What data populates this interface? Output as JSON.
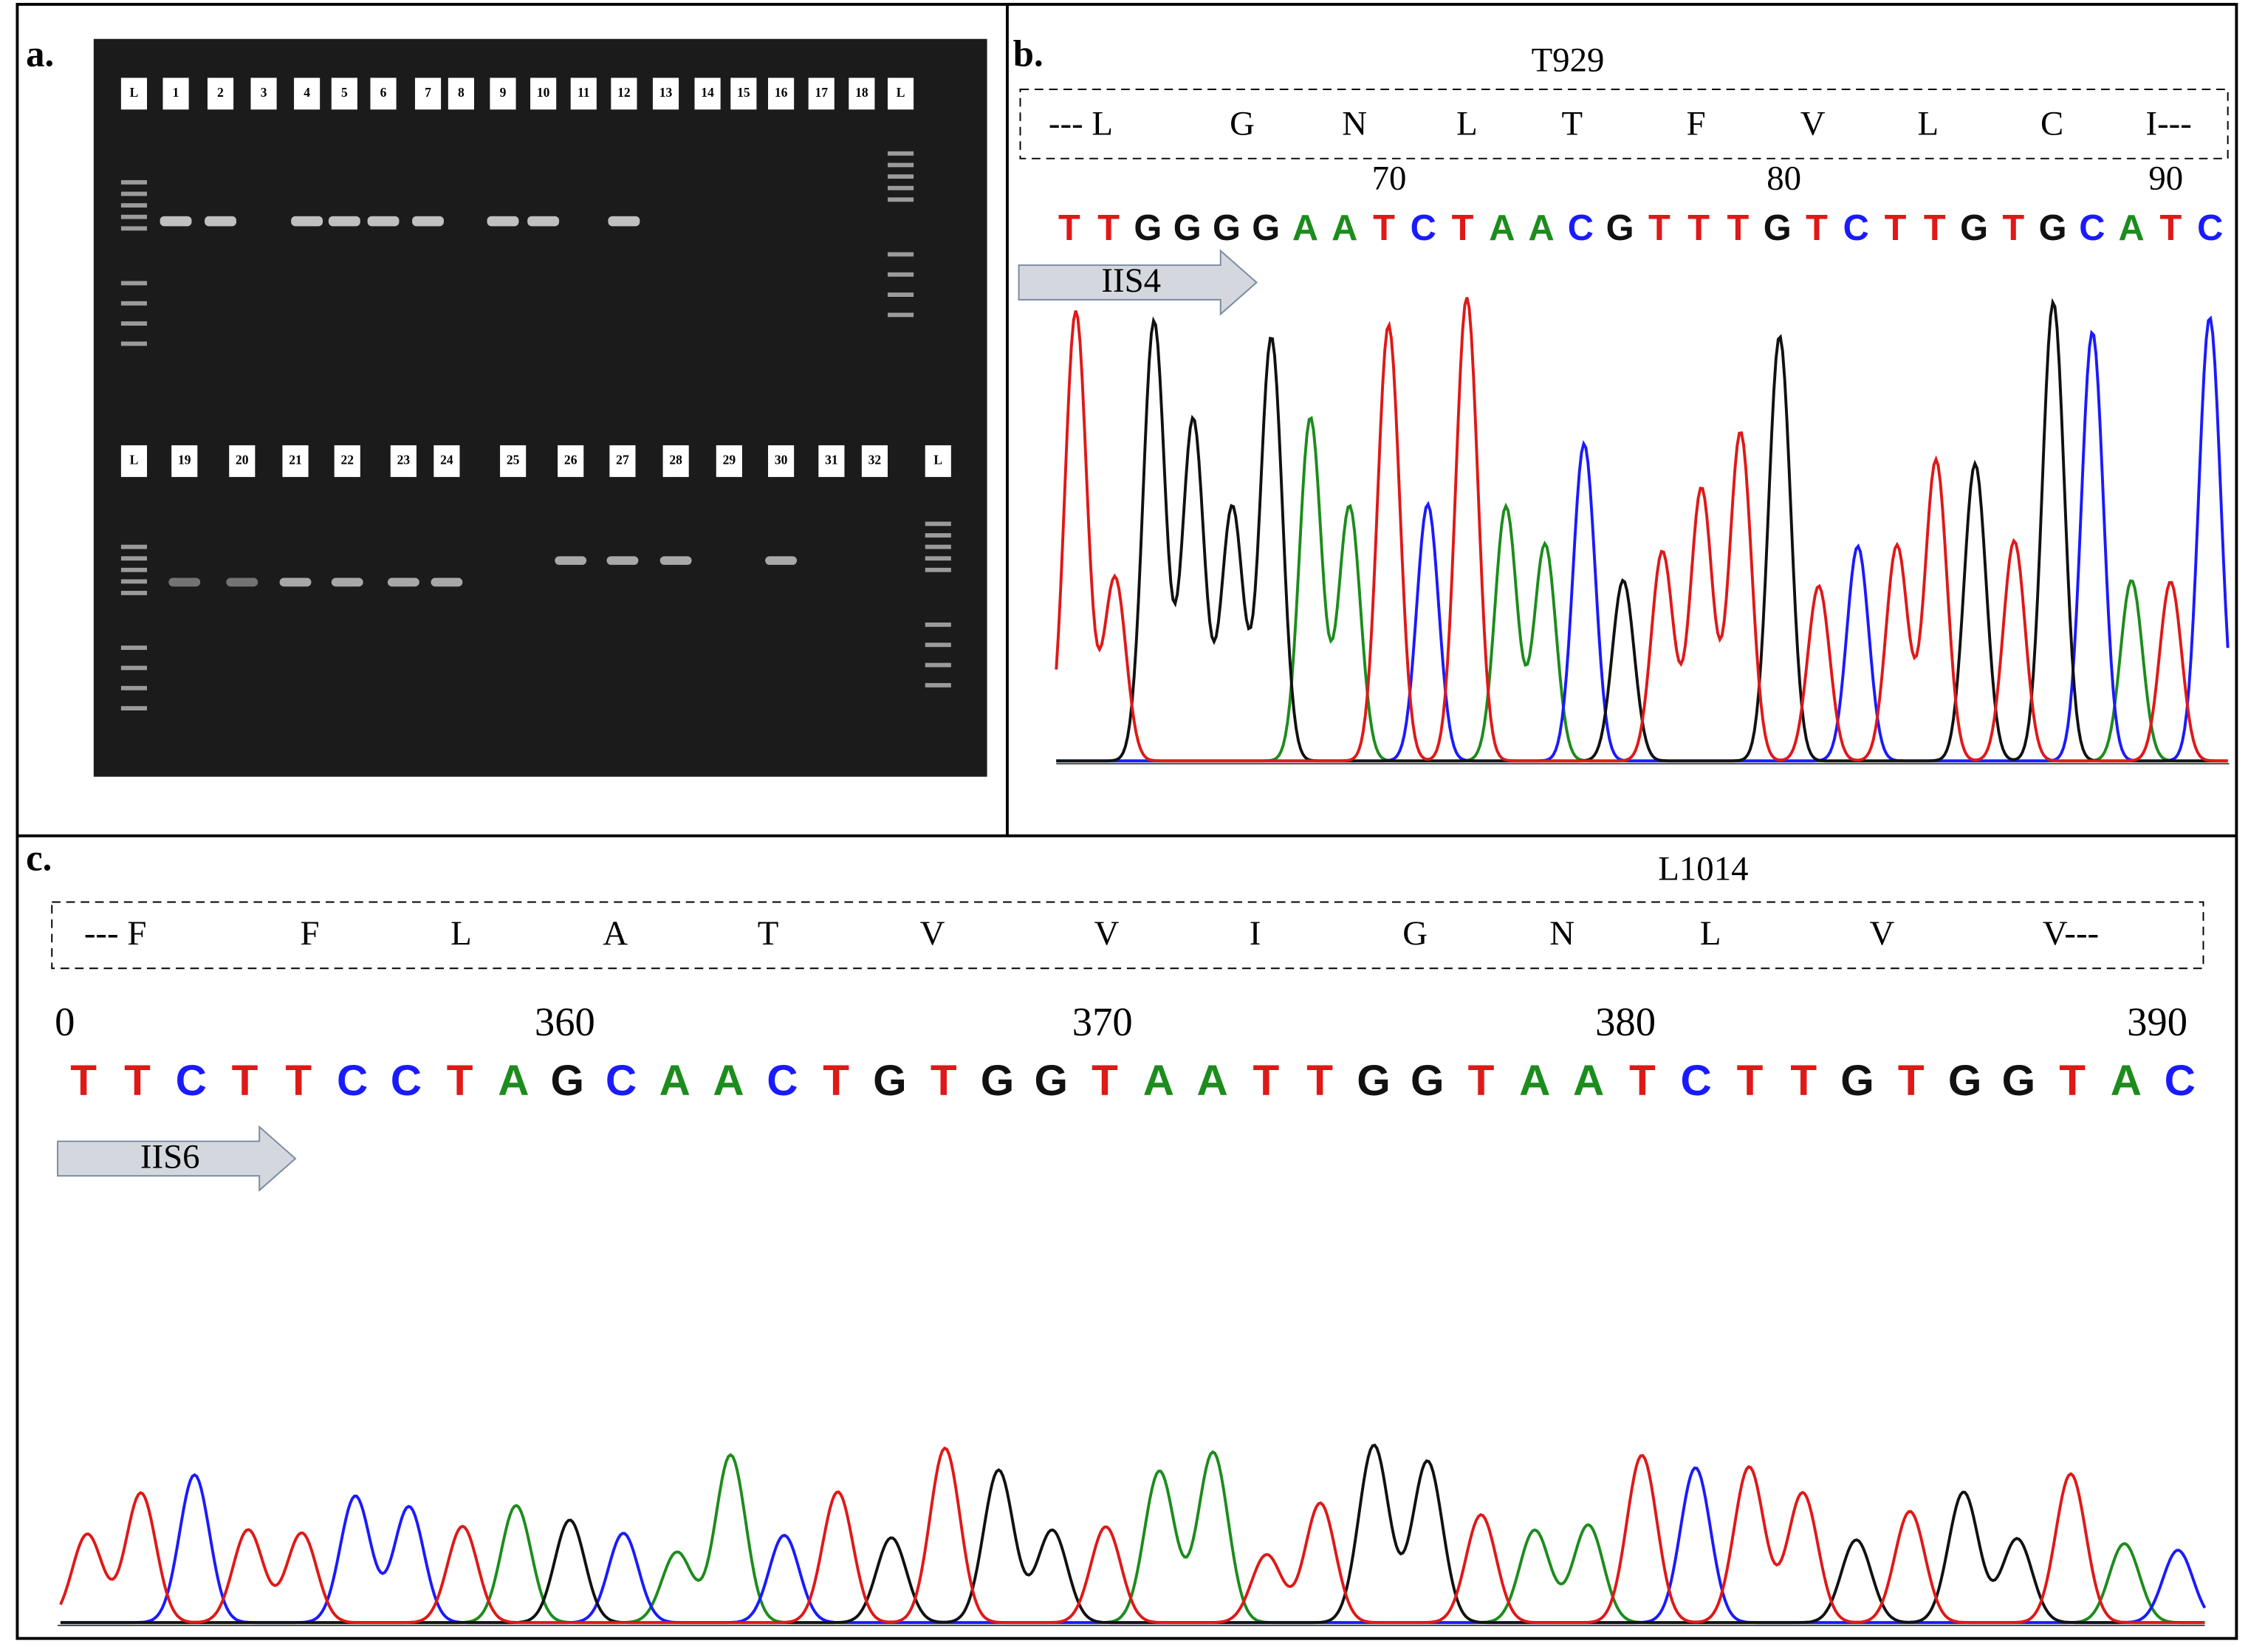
{
  "panel_a": {
    "label": "a.",
    "lanes_top": [
      "L",
      "1",
      "2",
      "3",
      "4",
      "5",
      "6",
      "7",
      "8",
      "9",
      "10",
      "11",
      "12",
      "13",
      "14",
      "15",
      "16",
      "17",
      "18",
      "L"
    ],
    "lanes_bottom": [
      "L",
      "19",
      "20",
      "21",
      "22",
      "23",
      "24",
      "25",
      "26",
      "27",
      "28",
      "29",
      "30",
      "31",
      "32",
      "L"
    ]
  },
  "panel_b": {
    "label": "b.",
    "mutation": "T929",
    "amino_acids": [
      "--- L",
      "G",
      "N",
      "L",
      "T",
      "F",
      "V",
      "L",
      "C",
      "I---"
    ],
    "positions": [
      "70",
      "80",
      "90"
    ],
    "bases": [
      "T",
      "T",
      "G",
      "G",
      "G",
      "G",
      "A",
      "A",
      "T",
      "C",
      "T",
      "A",
      "A",
      "C",
      "G",
      "T",
      "T",
      "T",
      "G",
      "T",
      "C",
      "T",
      "T",
      "G",
      "T",
      "G",
      "C",
      "A",
      "T",
      "C"
    ],
    "region": "IIS4"
  },
  "panel_c": {
    "label": "c.",
    "mutation": "L1014",
    "amino_acids": [
      "--- F",
      "F",
      "L",
      "A",
      "T",
      "V",
      "V",
      "I",
      "G",
      "N",
      "L",
      "V",
      "V---"
    ],
    "positions": [
      "0",
      "360",
      "370",
      "380",
      "390"
    ],
    "bases": [
      "T",
      "T",
      "C",
      "T",
      "T",
      "C",
      "C",
      "T",
      "A",
      "G",
      "C",
      "A",
      "A",
      "C",
      "T",
      "G",
      "T",
      "G",
      "G",
      "T",
      "A",
      "A",
      "T",
      "T",
      "G",
      "G",
      "T",
      "A",
      "A",
      "T",
      "C",
      "T",
      "T",
      "G",
      "T",
      "G",
      "G",
      "T",
      "A",
      "C"
    ],
    "region": "IIS6"
  }
}
